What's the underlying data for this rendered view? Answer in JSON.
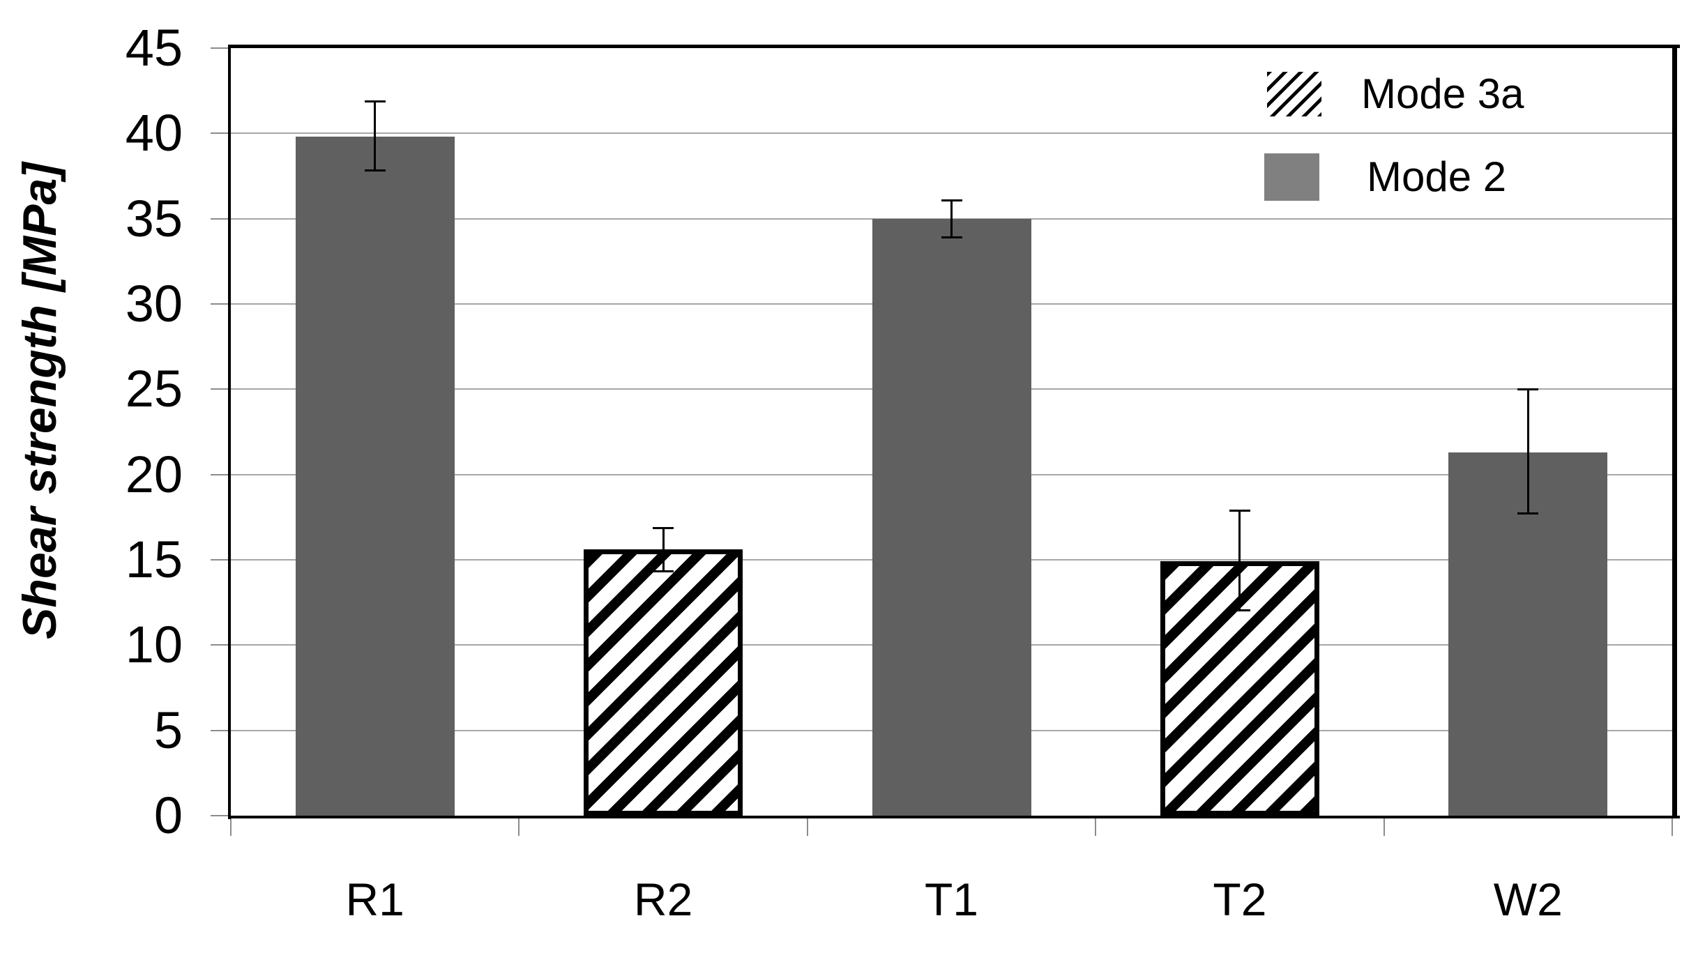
{
  "chart_data": {
    "type": "bar",
    "title": "",
    "xlabel": "",
    "ylabel": "Shear strength [MPa]",
    "ylim": [
      0,
      45
    ],
    "yticks": [
      0,
      5,
      10,
      15,
      20,
      25,
      30,
      35,
      40,
      45
    ],
    "grid": true,
    "legend_position": "top-right",
    "categories": [
      "R1",
      "R2",
      "T1",
      "T2",
      "W2"
    ],
    "bars": [
      {
        "category": "R1",
        "series": "Mode 2",
        "value": 39.8,
        "error_plus": 2.1,
        "error_minus": 2.0,
        "style": "solid"
      },
      {
        "category": "R2",
        "series": "Mode 3a",
        "value": 15.6,
        "error_plus": 1.3,
        "error_minus": 1.3,
        "style": "hatched"
      },
      {
        "category": "T1",
        "series": "Mode 2",
        "value": 35.0,
        "error_plus": 1.1,
        "error_minus": 1.1,
        "style": "solid"
      },
      {
        "category": "T2",
        "series": "Mode 3a",
        "value": 14.9,
        "error_plus": 3.0,
        "error_minus": 2.9,
        "style": "hatched"
      },
      {
        "category": "W2",
        "series": "Mode 2",
        "value": 21.3,
        "error_plus": 3.7,
        "error_minus": 3.6,
        "style": "solid"
      }
    ],
    "legend": [
      {
        "label": "Mode 3a",
        "swatch": "hatched-diagonal"
      },
      {
        "label": "Mode 2",
        "swatch": "solid-gray"
      }
    ]
  },
  "colors": {
    "bar_solid": "#606060",
    "legend_solid_swatch": "#808080",
    "hatch_stripe": "#000000",
    "hatch_background": "#ffffff",
    "gridline": "#a6a6a6",
    "tick": "#8c8c8c",
    "axis": "#000000",
    "text": "#000000",
    "background": "#ffffff"
  }
}
